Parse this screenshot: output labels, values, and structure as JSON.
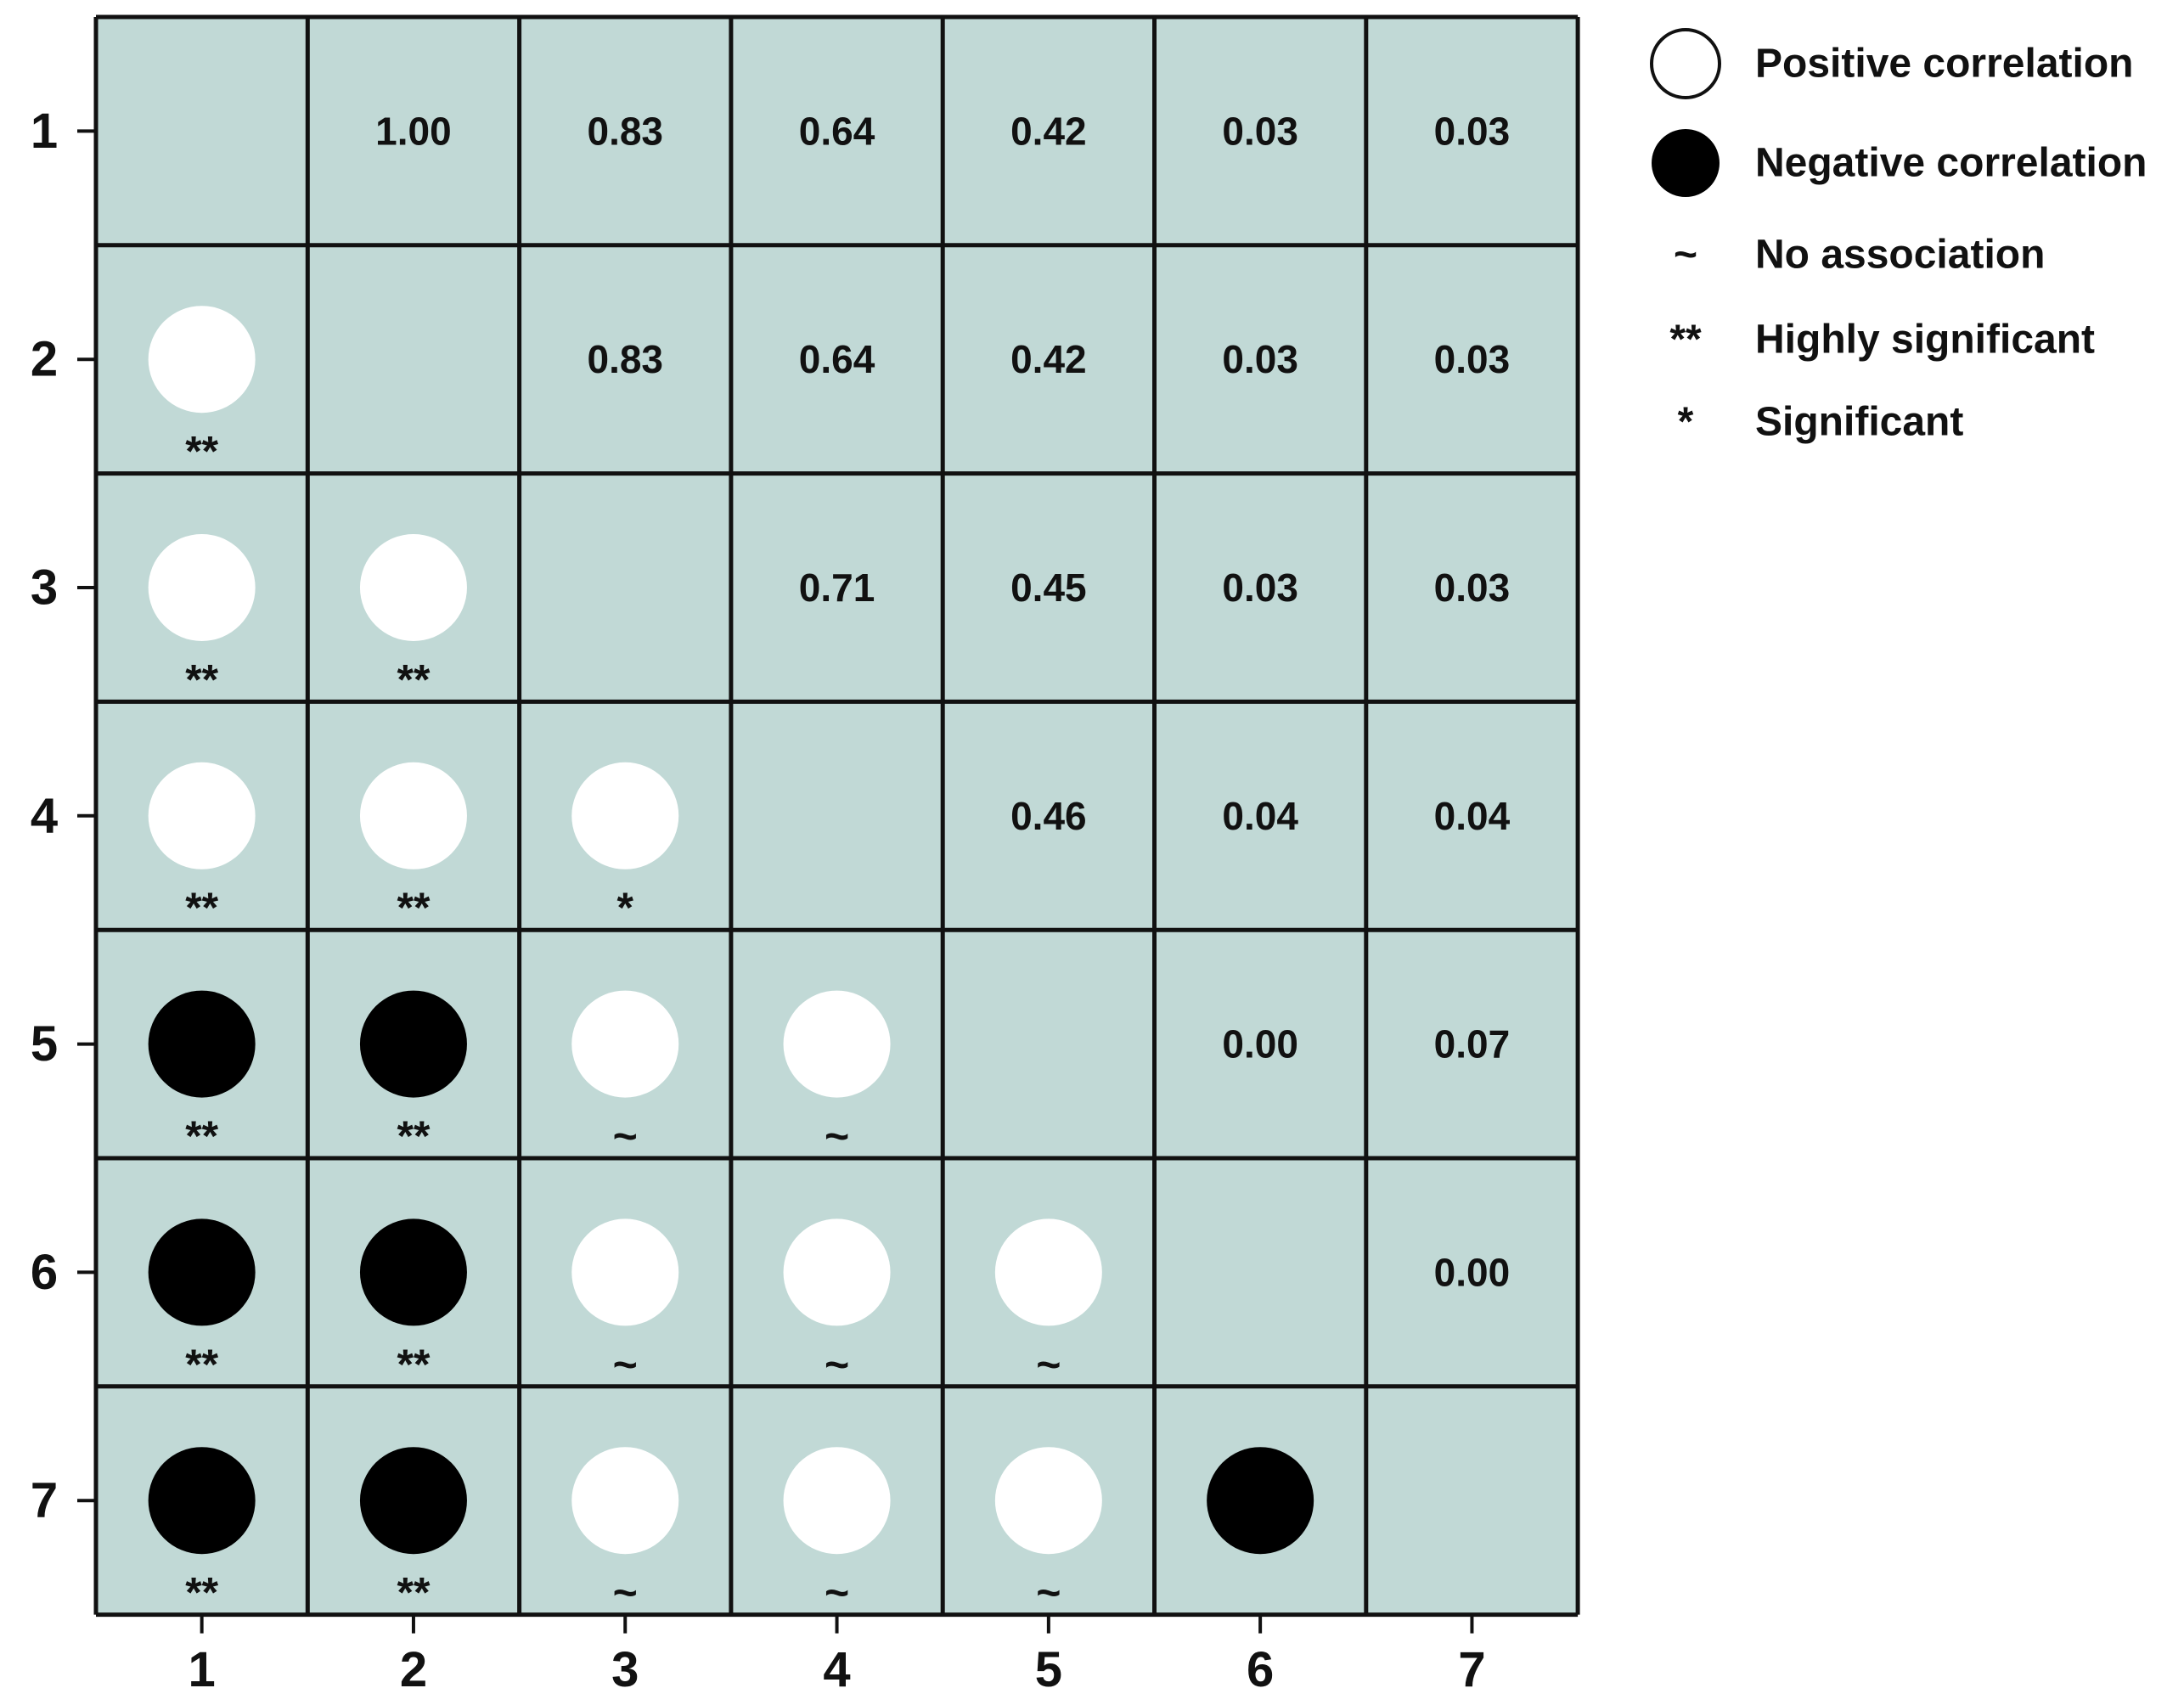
{
  "chart_data": {
    "type": "correlation_matrix",
    "x_ticks": [
      "1",
      "2",
      "3",
      "4",
      "5",
      "6",
      "7"
    ],
    "y_ticks": [
      "1",
      "2",
      "3",
      "4",
      "5",
      "6",
      "7"
    ],
    "grid": true,
    "legend_position": "top-right",
    "colors": {
      "cell_background": "#c1d9d6",
      "grid_line": "#111111",
      "positive": "#ffffff",
      "negative": "#000000"
    },
    "legend": [
      {
        "symbol": "open-circle",
        "label": "Positive correlation"
      },
      {
        "symbol": "filled-circle",
        "label": "Negative correlation"
      },
      {
        "symbol": "~",
        "label": "No association"
      },
      {
        "symbol": "**",
        "label": "Highly significant"
      },
      {
        "symbol": "*",
        "label": "Significant"
      }
    ],
    "upper_values": [
      {
        "row": 1,
        "col": 2,
        "text": "1.00"
      },
      {
        "row": 1,
        "col": 3,
        "text": "0.83"
      },
      {
        "row": 1,
        "col": 4,
        "text": "0.64"
      },
      {
        "row": 1,
        "col": 5,
        "text": "0.42"
      },
      {
        "row": 1,
        "col": 6,
        "text": "0.03"
      },
      {
        "row": 1,
        "col": 7,
        "text": "0.03"
      },
      {
        "row": 2,
        "col": 3,
        "text": "0.83"
      },
      {
        "row": 2,
        "col": 4,
        "text": "0.64"
      },
      {
        "row": 2,
        "col": 5,
        "text": "0.42"
      },
      {
        "row": 2,
        "col": 6,
        "text": "0.03"
      },
      {
        "row": 2,
        "col": 7,
        "text": "0.03"
      },
      {
        "row": 3,
        "col": 4,
        "text": "0.71"
      },
      {
        "row": 3,
        "col": 5,
        "text": "0.45"
      },
      {
        "row": 3,
        "col": 6,
        "text": "0.03"
      },
      {
        "row": 3,
        "col": 7,
        "text": "0.03"
      },
      {
        "row": 4,
        "col": 5,
        "text": "0.46"
      },
      {
        "row": 4,
        "col": 6,
        "text": "0.04"
      },
      {
        "row": 4,
        "col": 7,
        "text": "0.04"
      },
      {
        "row": 5,
        "col": 6,
        "text": "0.00"
      },
      {
        "row": 5,
        "col": 7,
        "text": "0.07"
      },
      {
        "row": 6,
        "col": 7,
        "text": "0.00"
      }
    ],
    "lower_marks": [
      {
        "row": 2,
        "col": 1,
        "sign": "positive",
        "sig": "**"
      },
      {
        "row": 3,
        "col": 1,
        "sign": "positive",
        "sig": "**"
      },
      {
        "row": 3,
        "col": 2,
        "sign": "positive",
        "sig": "**"
      },
      {
        "row": 4,
        "col": 1,
        "sign": "positive",
        "sig": "**"
      },
      {
        "row": 4,
        "col": 2,
        "sign": "positive",
        "sig": "**"
      },
      {
        "row": 4,
        "col": 3,
        "sign": "positive",
        "sig": "*"
      },
      {
        "row": 5,
        "col": 1,
        "sign": "negative",
        "sig": "**"
      },
      {
        "row": 5,
        "col": 2,
        "sign": "negative",
        "sig": "**"
      },
      {
        "row": 5,
        "col": 3,
        "sign": "positive",
        "sig": "~"
      },
      {
        "row": 5,
        "col": 4,
        "sign": "positive",
        "sig": "~"
      },
      {
        "row": 6,
        "col": 1,
        "sign": "negative",
        "sig": "**"
      },
      {
        "row": 6,
        "col": 2,
        "sign": "negative",
        "sig": "**"
      },
      {
        "row": 6,
        "col": 3,
        "sign": "positive",
        "sig": "~"
      },
      {
        "row": 6,
        "col": 4,
        "sign": "positive",
        "sig": "~"
      },
      {
        "row": 6,
        "col": 5,
        "sign": "positive",
        "sig": "~"
      },
      {
        "row": 7,
        "col": 1,
        "sign": "negative",
        "sig": "**"
      },
      {
        "row": 7,
        "col": 2,
        "sign": "negative",
        "sig": "**"
      },
      {
        "row": 7,
        "col": 3,
        "sign": "positive",
        "sig": "~"
      },
      {
        "row": 7,
        "col": 4,
        "sign": "positive",
        "sig": "~"
      },
      {
        "row": 7,
        "col": 5,
        "sign": "positive",
        "sig": "~"
      },
      {
        "row": 7,
        "col": 6,
        "sign": "negative",
        "sig": ""
      }
    ]
  }
}
